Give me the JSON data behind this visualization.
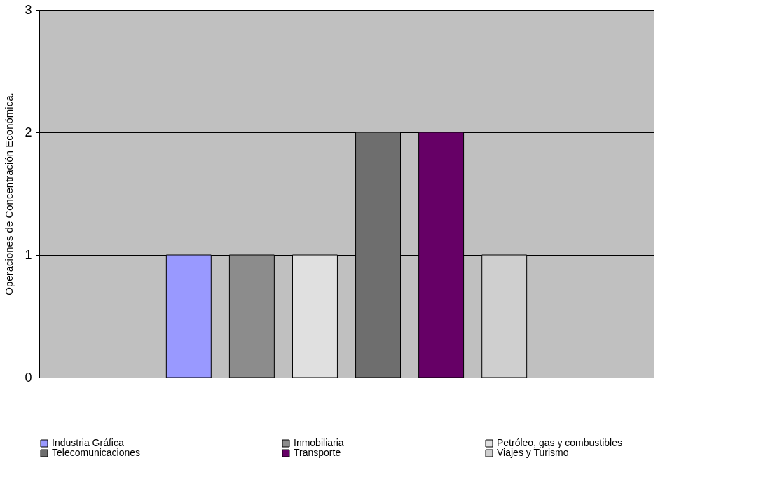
{
  "chart_data": {
    "type": "bar",
    "ylabel": "Operaciones de Concentración Económica.",
    "categories": [
      null
    ],
    "series": [
      {
        "name": "Industria Gráfica",
        "color": "#9999ff",
        "values": [
          1
        ]
      },
      {
        "name": "Inmobiliaria",
        "color": "#8c8c8c",
        "values": [
          1
        ]
      },
      {
        "name": "Petróleo, gas y combustibles",
        "color": "#e0e0e0",
        "values": [
          1
        ]
      },
      {
        "name": "Telecomunicaciones",
        "color": "#6e6e6e",
        "values": [
          2
        ]
      },
      {
        "name": "Transporte",
        "color": "#660066",
        "values": [
          2
        ]
      },
      {
        "name": "Viajes y Turismo",
        "color": "#cfcfcf",
        "values": [
          1
        ]
      }
    ],
    "ylim": [
      0,
      3
    ],
    "yticks": [
      0,
      1,
      2,
      3
    ],
    "grid": "y",
    "legend": "bottom"
  }
}
